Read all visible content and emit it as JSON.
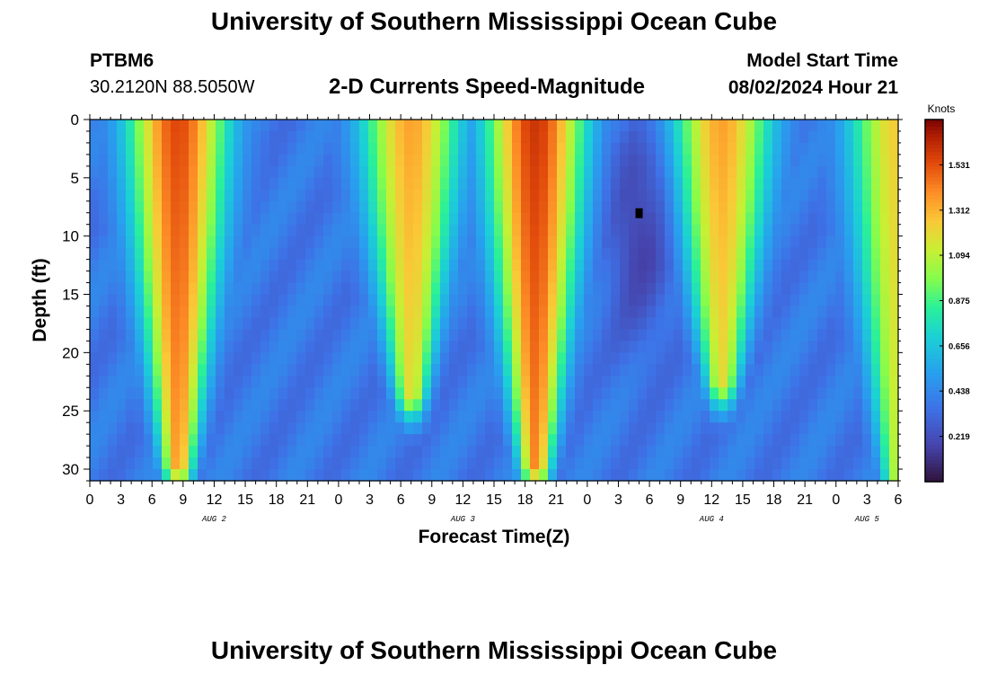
{
  "header": {
    "title": "University of Southern Mississippi Ocean Cube",
    "station_id": "PTBM6",
    "station_coords": "30.2120N  88.5050W",
    "plot_subtitle": "2-D Currents Speed-Magnitude",
    "start_label": "Model Start Time",
    "start_value": "08/02/2024 Hour 21"
  },
  "footer": {
    "title_repeat": "University of Southern Mississippi Ocean Cube"
  },
  "chart_data": {
    "type": "heatmap",
    "title": "2-D Currents Speed-Magnitude",
    "xlabel": "Forecast Time(Z)",
    "ylabel": "Depth (ft)",
    "colorbar_label": "Knots",
    "x_range_hours": [
      0,
      78
    ],
    "y_range_ft": [
      0,
      31
    ],
    "y_ticks": [
      "0",
      "5",
      "10",
      "15",
      "20",
      "25",
      "30"
    ],
    "y_tick_values": [
      0,
      5,
      10,
      15,
      20,
      25,
      30
    ],
    "x_tick_labels": [
      "0",
      "3",
      "6",
      "9",
      "12",
      "15",
      "18",
      "21",
      "0",
      "3",
      "6",
      "9",
      "12",
      "15",
      "18",
      "21",
      "0",
      "3",
      "6",
      "9",
      "12",
      "15",
      "18",
      "21",
      "0",
      "3",
      "6"
    ],
    "date_labels": [
      {
        "text": "AUG 2",
        "hour": 12
      },
      {
        "text": "AUG 3",
        "hour": 36
      },
      {
        "text": "AUG 4",
        "hour": 60
      },
      {
        "text": "AUG 5",
        "hour": 75
      }
    ],
    "colorbar_ticks": [
      "1.531",
      "1.312",
      "1.094",
      "0.875",
      "0.656",
      "0.438",
      "0.219"
    ],
    "colorbar_tick_values": [
      1.531,
      1.312,
      1.094,
      0.875,
      0.656,
      0.438,
      0.219
    ],
    "colorbar_range": [
      0,
      1.75
    ],
    "peaks_surface": [
      {
        "hour": 8.5,
        "peak_knots": 1.55,
        "depth_reach_ft": 30
      },
      {
        "hour": 31,
        "peak_knots": 1.35,
        "depth_reach_ft": 24
      },
      {
        "hour": 43,
        "peak_knots": 1.6,
        "depth_reach_ft": 30
      },
      {
        "hour": 61,
        "peak_knots": 1.35,
        "depth_reach_ft": 23
      },
      {
        "hour": 78,
        "peak_knots": 1.25,
        "depth_reach_ft": 31
      }
    ],
    "minimum_marker": {
      "hour": 53,
      "depth_ft": 8,
      "knots": 0.0
    }
  }
}
